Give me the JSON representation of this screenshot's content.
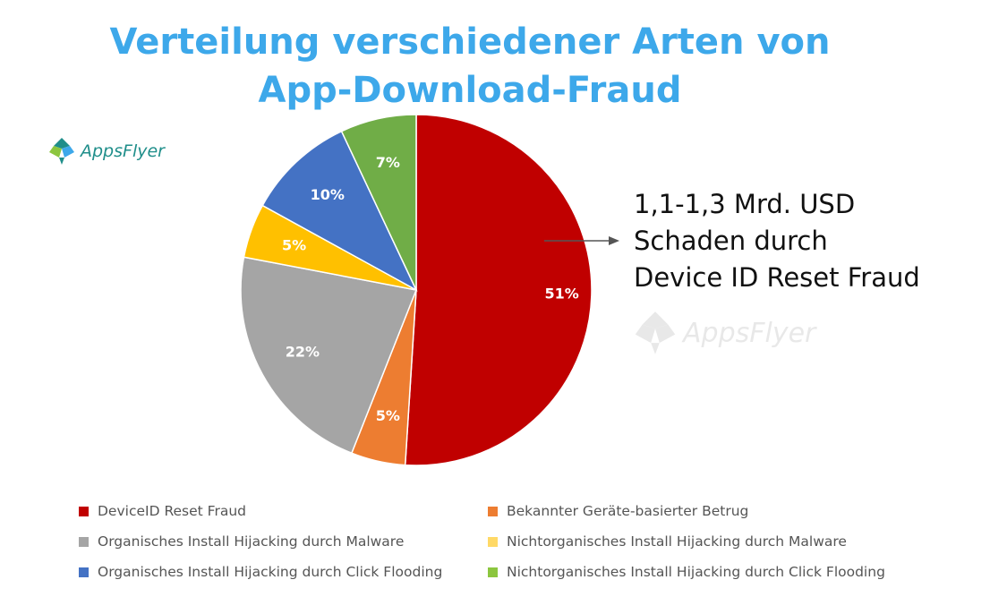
{
  "title_line1": "Verteilung verschiedener Arten von",
  "title_line2": "App-Download-Fraud",
  "logo_text": "AppsFlyer",
  "watermark_text": "AppsFlyer",
  "annotation": {
    "line1": "1,1-1,3 Mrd. USD",
    "line2": "Schaden durch",
    "line3": "Device ID Reset Fraud"
  },
  "chart_data": {
    "type": "pie",
    "title": "Verteilung verschiedener Arten von App-Download-Fraud",
    "slices": [
      {
        "label": "DeviceID Reset Fraud",
        "value": 51,
        "display": "51%",
        "color": "#C00000"
      },
      {
        "label": "Bekannter Geräte-basierter Betrug",
        "value": 5,
        "display": "5%",
        "color": "#ED7D31"
      },
      {
        "label": "Organisches Install Hijacking durch Malware",
        "value": 22,
        "display": "22%",
        "color": "#A5A5A5"
      },
      {
        "label": "Nichtorganisches Install Hijacking durch Malware",
        "value": 5,
        "display": "5%",
        "color": "#FFC000"
      },
      {
        "label": "Organisches Install Hijacking durch Click Flooding",
        "value": 10,
        "display": "10%",
        "color": "#4472C4"
      },
      {
        "label": "Nichtorganisches Install Hijacking durch Click Flooding",
        "value": 7,
        "display": "7%",
        "color": "#70AD47"
      }
    ],
    "legend_position": "bottom",
    "legend_colors": {
      "nichtorganisch_malware": "#FFD966",
      "nichtorganisch_click_flooding": "#8CC63F"
    }
  },
  "legend": [
    {
      "label": "DeviceID Reset Fraud",
      "color": "#C00000"
    },
    {
      "label": "Bekannter Geräte-basierter Betrug",
      "color": "#ED7D31"
    },
    {
      "label": "Organisches Install Hijacking durch Malware",
      "color": "#A5A5A5"
    },
    {
      "label": "Nichtorganisches Install Hijacking durch Malware",
      "color": "#FFD966"
    },
    {
      "label": "Organisches Install Hijacking durch Click Flooding",
      "color": "#4472C4"
    },
    {
      "label": "Nichtorganisches Install Hijacking durch Click Flooding",
      "color": "#8CC63F"
    }
  ]
}
